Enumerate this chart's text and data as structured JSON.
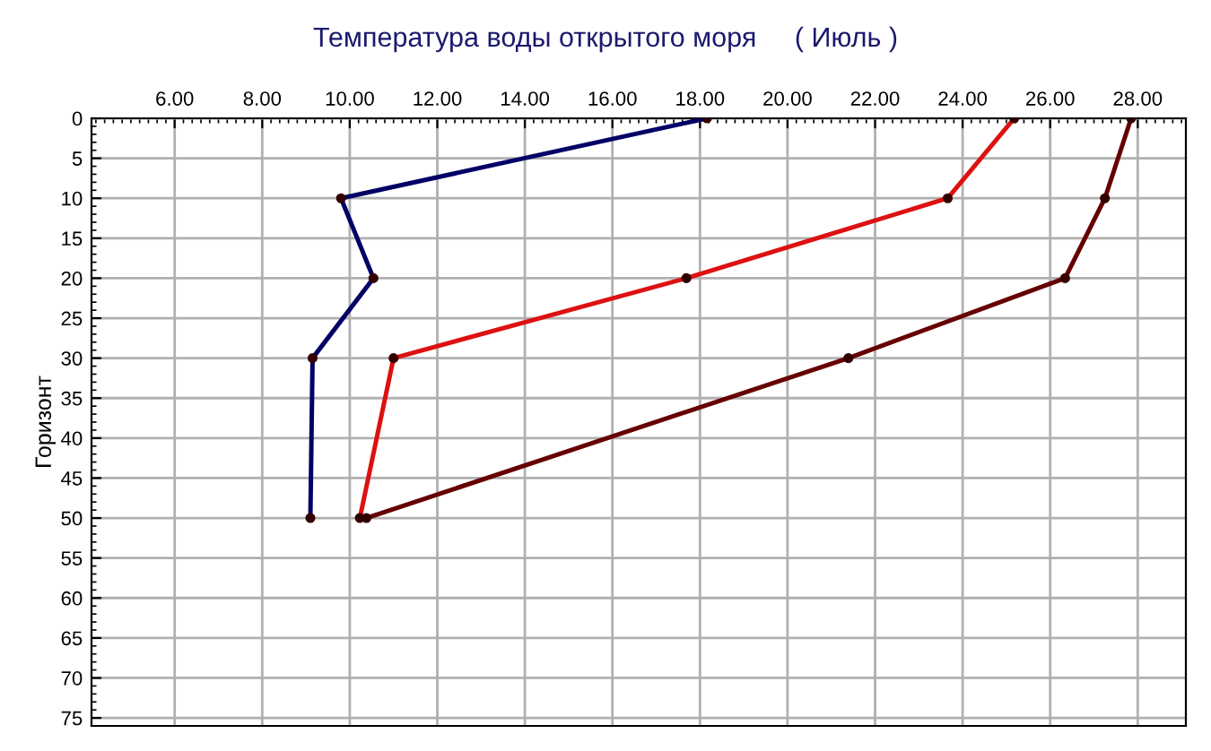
{
  "chart_data": {
    "type": "line",
    "title": "Температура воды открытого моря     ( Июль )",
    "ylabel": "Горизонт",
    "series": [
      {
        "color": "#000066",
        "x": [
          18.16,
          9.8,
          10.54,
          9.15,
          9.1
        ],
        "values": [
          0,
          10,
          20,
          30,
          50
        ]
      },
      {
        "color": "#dd1111",
        "x": [
          25.18,
          23.66,
          17.69,
          11.0,
          10.23
        ],
        "values": [
          0,
          10,
          20,
          30,
          50
        ]
      },
      {
        "color": "#660000",
        "x": [
          27.85,
          27.25,
          26.34,
          21.39,
          10.38
        ],
        "values": [
          0,
          10,
          20,
          30,
          50
        ]
      }
    ],
    "xlim": [
      4.1,
      29.1
    ],
    "xticks": [
      {
        "value": 6,
        "label": "6.00"
      },
      {
        "value": 8,
        "label": "8.00"
      },
      {
        "value": 10,
        "label": "10.00"
      },
      {
        "value": 12,
        "label": "12.00"
      },
      {
        "value": 14,
        "label": "14.00"
      },
      {
        "value": 16,
        "label": "16.00"
      },
      {
        "value": 18,
        "label": "18.00"
      },
      {
        "value": 20,
        "label": "20.00"
      },
      {
        "value": 22,
        "label": "22.00"
      },
      {
        "value": 24,
        "label": "24.00"
      },
      {
        "value": 26,
        "label": "26.00"
      },
      {
        "value": 28,
        "label": "28.00"
      }
    ],
    "ylim": [
      76,
      0
    ],
    "yticks": [
      0,
      5,
      10,
      15,
      20,
      25,
      30,
      35,
      40,
      45,
      50,
      55,
      60,
      65,
      70,
      75
    ],
    "grid": true,
    "marker": "circle",
    "line_style": "solid"
  }
}
